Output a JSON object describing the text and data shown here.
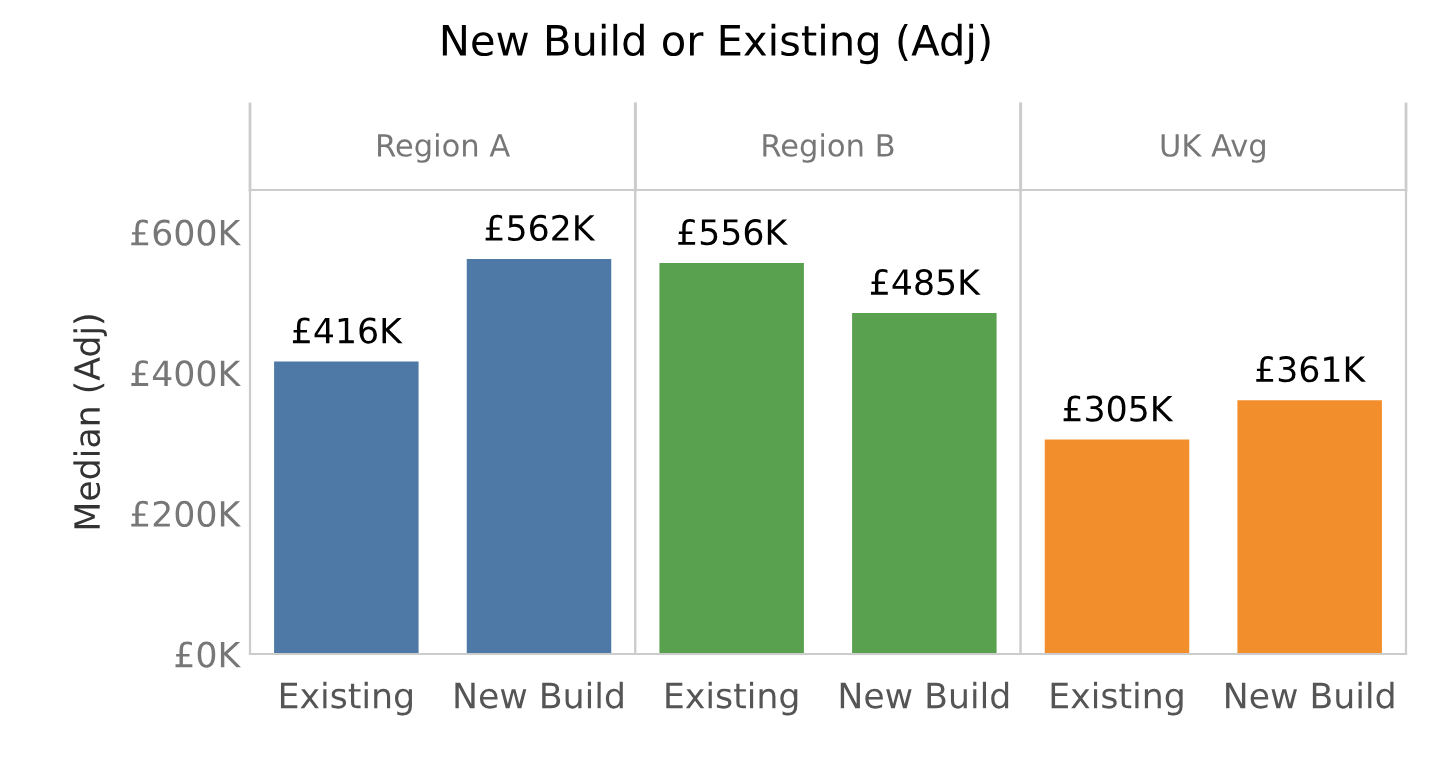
{
  "chart_data": [
    {
      "type": "bar",
      "title": "New Build or Existing (Adj)",
      "subtitle": "Region A",
      "ylabel": "Median (Adj)",
      "categories": [
        "Existing",
        "New Build"
      ],
      "values": [
        416,
        562
      ],
      "color": "#4e79a7",
      "value_labels": [
        "£416K",
        "£562K"
      ],
      "ylim": [
        0,
        660
      ],
      "yticks": [
        {
          "value": 0,
          "label": "£0K"
        },
        {
          "value": 200,
          "label": "£200K"
        },
        {
          "value": 400,
          "label": "£400K"
        },
        {
          "value": 600,
          "label": "£600K"
        }
      ],
      "grid": false,
      "legend": false
    },
    {
      "type": "bar",
      "subtitle": "Region B",
      "categories": [
        "Existing",
        "New Build"
      ],
      "values": [
        556,
        485
      ],
      "color": "#59a14f",
      "value_labels": [
        "£556K",
        "£485K"
      ],
      "ylim": [
        0,
        660
      ],
      "tick_labels": "x",
      "grid": false,
      "legend": false
    },
    {
      "type": "bar",
      "subtitle": "UK Avg",
      "categories": [
        "Existing",
        "New Build"
      ],
      "values": [
        305,
        361
      ],
      "color": "#f28e2b",
      "value_labels": [
        "£305K",
        "£361K"
      ],
      "ylim": [
        0,
        660
      ],
      "tick_labels": "x",
      "grid": false,
      "legend": false
    }
  ]
}
